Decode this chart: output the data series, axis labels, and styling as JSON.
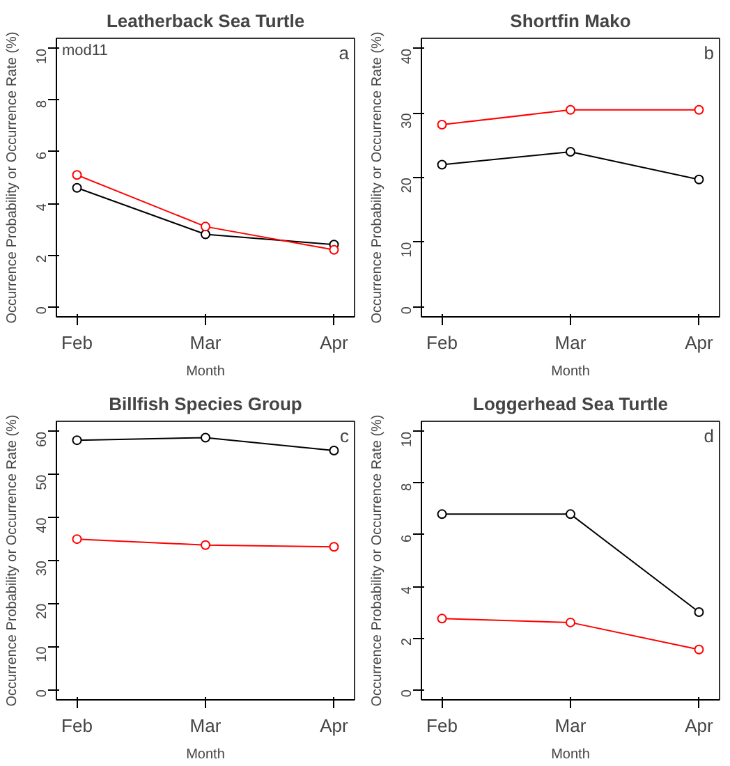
{
  "chart_data": [
    {
      "type": "line",
      "title": "Leatherback Sea Turtle",
      "xlabel": "Month",
      "ylabel": "Occurrence Probability or Occurrence Rate (%)",
      "categories": [
        "Feb",
        "Mar",
        "Apr"
      ],
      "series": [
        {
          "color": "#000000",
          "values": [
            4.6,
            2.8,
            2.4
          ]
        },
        {
          "color": "#ff0000",
          "values": [
            5.1,
            3.1,
            2.2
          ]
        }
      ],
      "ylim": [
        -0.4,
        10.4
      ],
      "yticks": [
        0,
        2,
        4,
        6,
        8,
        10
      ],
      "marker": "circle",
      "line_style": "solid",
      "grid": false,
      "annotations": [
        "mod11",
        "a"
      ]
    },
    {
      "type": "line",
      "title": "Shortfin Mako",
      "xlabel": "Month",
      "ylabel": "Occurrence Probability or Occurrence Rate (%)",
      "categories": [
        "Feb",
        "Mar",
        "Apr"
      ],
      "series": [
        {
          "color": "#000000",
          "values": [
            22,
            24,
            19.7
          ]
        },
        {
          "color": "#ff0000",
          "values": [
            28.2,
            30.5,
            30.5
          ]
        }
      ],
      "ylim": [
        -1.6,
        41.6
      ],
      "yticks": [
        0,
        10,
        20,
        30,
        40
      ],
      "marker": "circle",
      "line_style": "solid",
      "grid": false,
      "annotations": [
        "b"
      ]
    },
    {
      "type": "line",
      "title": "Billfish Species Group",
      "xlabel": "Month",
      "ylabel": "Occurrence Probability or Occurrence Rate (%)",
      "categories": [
        "Feb",
        "Mar",
        "Apr"
      ],
      "series": [
        {
          "color": "#000000",
          "values": [
            58,
            58.6,
            55.6
          ]
        },
        {
          "color": "#ff0000",
          "values": [
            35,
            33.6,
            33.2
          ]
        }
      ],
      "ylim": [
        -2.4,
        62.4
      ],
      "yticks": [
        0,
        10,
        20,
        30,
        40,
        50,
        60
      ],
      "marker": "circle",
      "line_style": "solid",
      "grid": false,
      "annotations": [
        "c"
      ]
    },
    {
      "type": "line",
      "title": "Loggerhead Sea Turtle",
      "xlabel": "Month",
      "ylabel": "Occurrence Probability or Occurrence Rate (%)",
      "categories": [
        "Feb",
        "Mar",
        "Apr"
      ],
      "series": [
        {
          "color": "#000000",
          "values": [
            6.8,
            6.8,
            3.0
          ]
        },
        {
          "color": "#ff0000",
          "values": [
            2.75,
            2.6,
            1.55
          ]
        }
      ],
      "ylim": [
        -0.4,
        10.4
      ],
      "yticks": [
        0,
        2,
        4,
        6,
        8,
        10
      ],
      "marker": "circle",
      "line_style": "solid",
      "grid": false,
      "annotations": [
        "d"
      ]
    }
  ]
}
